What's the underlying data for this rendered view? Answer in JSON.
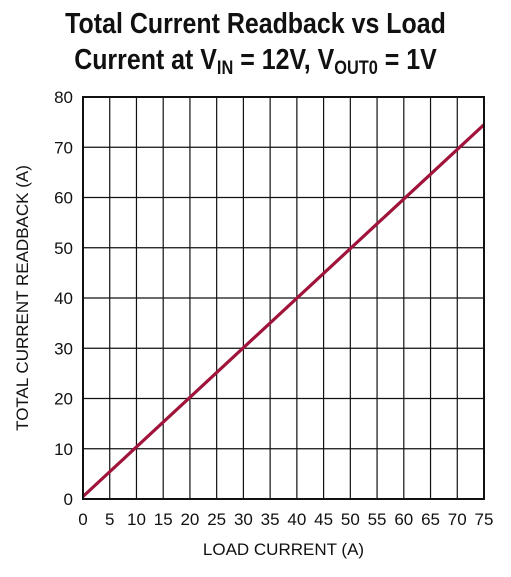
{
  "title": {
    "line1": "Total Current Readback vs Load",
    "line2_prefix": "Current at V",
    "vin_sub": "IN",
    "line2_mid": " = 12V, V",
    "vout_sub": "OUT0",
    "line2_suffix": " = 1V"
  },
  "chart_data": {
    "type": "line",
    "xlabel": "LOAD CURRENT (A)",
    "ylabel": "TOTAL CURRENT READBACK (A)",
    "xlim": [
      0,
      75
    ],
    "ylim": [
      0,
      80
    ],
    "x_ticks": [
      "0",
      "5",
      "10",
      "15",
      "20",
      "25",
      "30",
      "35",
      "40",
      "45",
      "50",
      "55",
      "60",
      "65",
      "70",
      "75"
    ],
    "y_ticks": [
      "0",
      "10",
      "20",
      "30",
      "40",
      "50",
      "60",
      "70",
      "80"
    ],
    "grid": true,
    "series": [
      {
        "x": [
          0,
          75
        ],
        "y": [
          0.5,
          74.5
        ]
      }
    ],
    "line_color": "#a0143c"
  }
}
